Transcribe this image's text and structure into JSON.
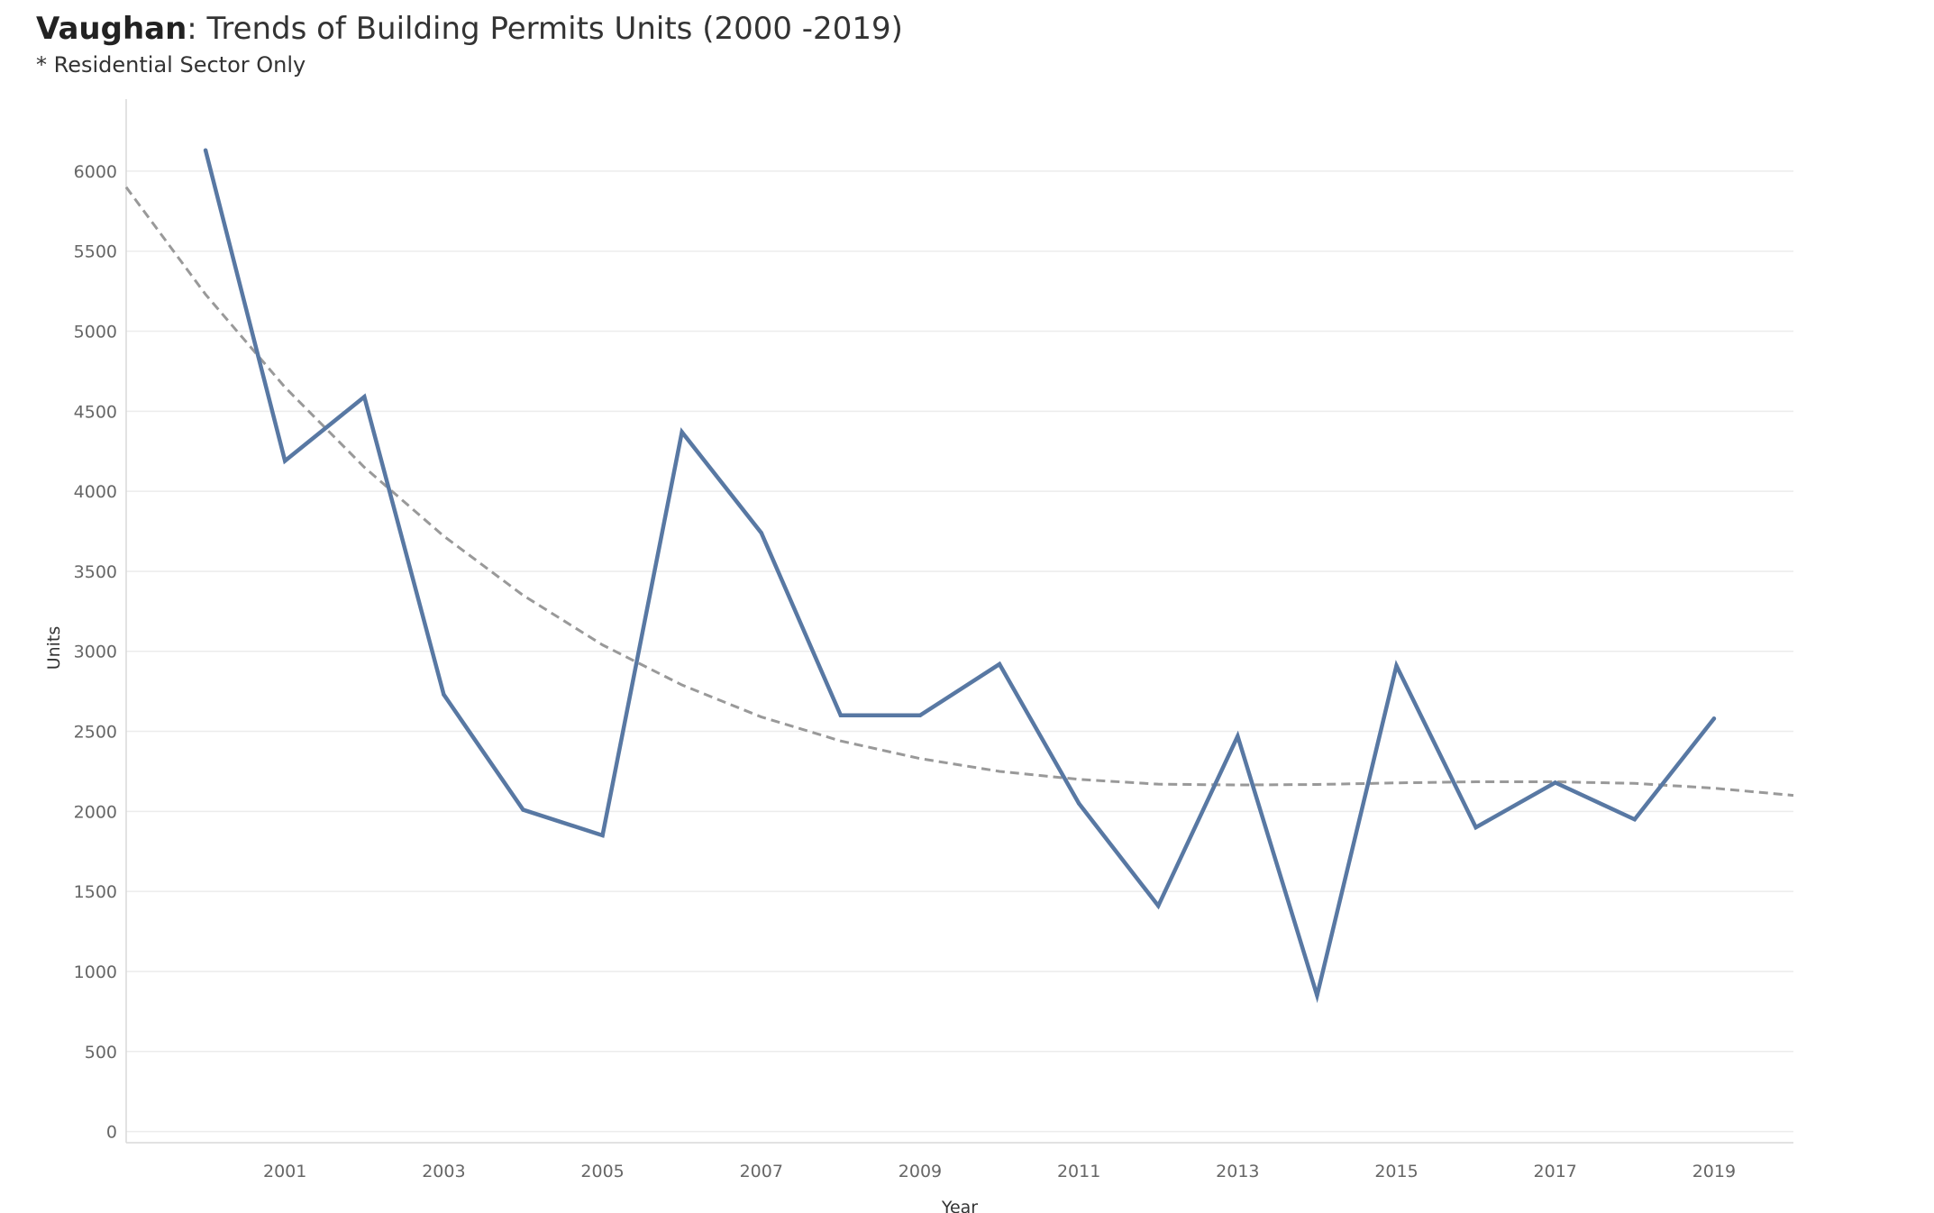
{
  "header": {
    "title_bold": "Vaughan",
    "title_rest": ": Trends of Building Permits Units (2000 -2019)",
    "subtitle": "* Residential Sector Only"
  },
  "colors": {
    "series_line": "#5878a3",
    "trend_line": "#999999"
  },
  "chart_data": {
    "type": "line",
    "title": "Vaughan: Trends of Building Permits Units (2000 -2019)",
    "subtitle": "* Residential Sector Only",
    "xlabel": "Year",
    "ylabel": "Units",
    "xlim": [
      1999,
      2020
    ],
    "ylim": [
      -70,
      6450
    ],
    "x_ticks": [
      2001,
      2003,
      2005,
      2007,
      2009,
      2011,
      2013,
      2015,
      2017,
      2019
    ],
    "y_ticks": [
      0,
      500,
      1000,
      1500,
      2000,
      2500,
      3000,
      3500,
      4000,
      4500,
      5000,
      5500,
      6000
    ],
    "grid": "horizontal",
    "legend": "none",
    "series": [
      {
        "x": [
          2000,
          2001,
          2002,
          2003,
          2004,
          2005,
          2006,
          2007,
          2008,
          2009,
          2010,
          2011,
          2012,
          2013,
          2014,
          2015,
          2016,
          2017,
          2018,
          2019
        ],
        "values": [
          6130,
          4190,
          4590,
          2730,
          2010,
          1850,
          4370,
          3740,
          2600,
          2600,
          2920,
          2050,
          1410,
          2470,
          850,
          2910,
          1900,
          2180,
          1950,
          2580
        ]
      }
    ],
    "trend_line": {
      "style": "dashed",
      "x": [
        1999,
        2000,
        2001,
        2002,
        2003,
        2004,
        2005,
        2006,
        2007,
        2008,
        2009,
        2010,
        2011,
        2012,
        2013,
        2014,
        2015,
        2016,
        2017,
        2018,
        2019,
        2020
      ],
      "values": [
        5900,
        5230,
        4650,
        4150,
        3720,
        3350,
        3040,
        2790,
        2590,
        2440,
        2330,
        2250,
        2200,
        2170,
        2165,
        2168,
        2178,
        2185,
        2185,
        2175,
        2145,
        2100
      ]
    }
  }
}
